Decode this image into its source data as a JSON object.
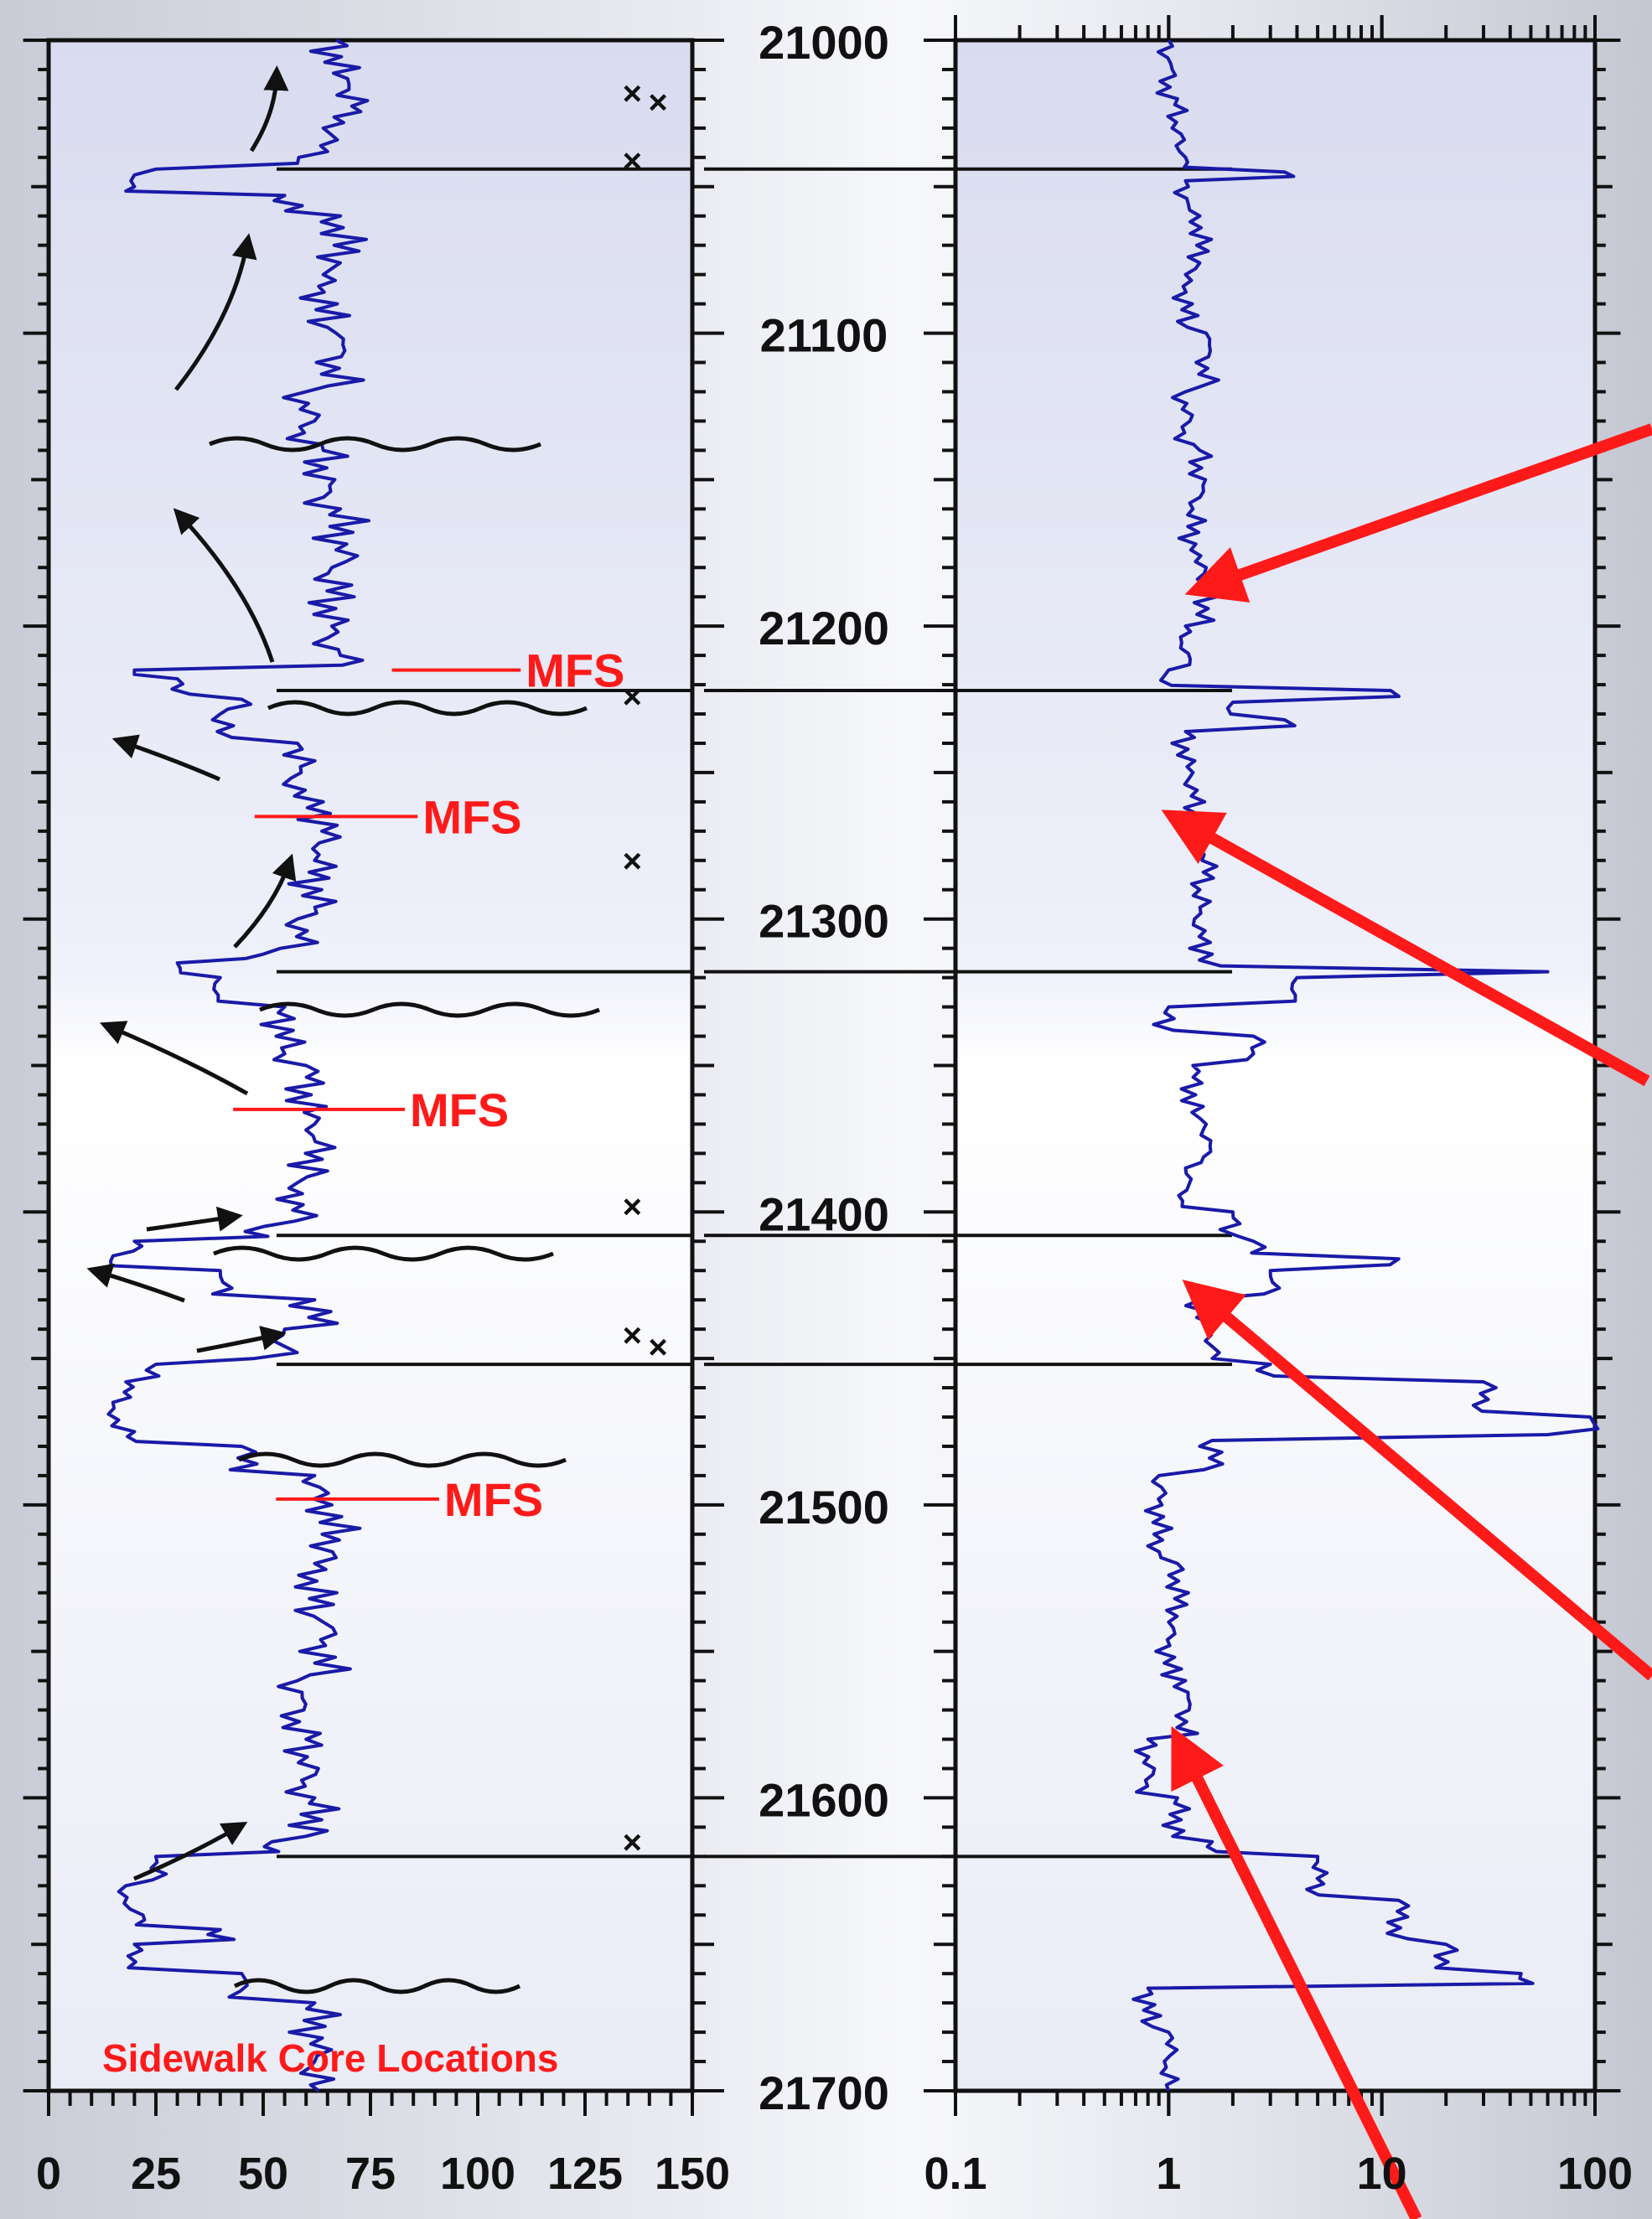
{
  "colors": {
    "log_line": "#1a1aa8",
    "mfs": "#ff1a1a",
    "arrow_red": "#ff1a1a",
    "boundary": "#111111",
    "panel_top": "#dcdff0",
    "panel_bottom": "#f3f5fb",
    "core_marker": "#1a1aa8"
  },
  "chart_data": [
    {
      "type": "line",
      "panel": "left",
      "xlabel": "",
      "ylabel": "",
      "xlim": [
        0,
        150
      ],
      "ylim": [
        21700,
        21000
      ],
      "x_ticks": [
        "0",
        "25",
        "50",
        "75",
        "100",
        "125",
        "150"
      ],
      "depth_ticks": [
        "21000",
        "21100",
        "21200",
        "21300",
        "21400",
        "21500",
        "21600",
        "21700"
      ],
      "series": [
        {
          "values": [
            [
              21000,
              67
            ],
            [
              21015,
              70
            ],
            [
              21030,
              64
            ],
            [
              21042,
              58
            ],
            [
              21044,
              25
            ],
            [
              21046,
              20
            ],
            [
              21050,
              20
            ],
            [
              21053,
              55
            ],
            [
              21060,
              68
            ],
            [
              21080,
              64
            ],
            [
              21100,
              67
            ],
            [
              21120,
              60
            ],
            [
              21140,
              64
            ],
            [
              21160,
              68
            ],
            [
              21180,
              66
            ],
            [
              21200,
              66
            ],
            [
              21210,
              68
            ],
            [
              21215,
              20
            ],
            [
              21218,
              30
            ],
            [
              21225,
              45
            ],
            [
              21230,
              40
            ],
            [
              21240,
              58
            ],
            [
              21260,
              64
            ],
            [
              21280,
              62
            ],
            [
              21300,
              58
            ],
            [
              21312,
              50
            ],
            [
              21315,
              30
            ],
            [
              21320,
              40
            ],
            [
              21330,
              55
            ],
            [
              21350,
              60
            ],
            [
              21370,
              62
            ],
            [
              21390,
              58
            ],
            [
              21405,
              50
            ],
            [
              21410,
              20
            ],
            [
              21415,
              15
            ],
            [
              21420,
              40
            ],
            [
              21430,
              62
            ],
            [
              21440,
              55
            ],
            [
              21450,
              48
            ],
            [
              21452,
              25
            ],
            [
              21458,
              18
            ],
            [
              21465,
              15
            ],
            [
              21475,
              20
            ],
            [
              21480,
              45
            ],
            [
              21490,
              62
            ],
            [
              21500,
              66
            ],
            [
              21520,
              62
            ],
            [
              21540,
              64
            ],
            [
              21560,
              58
            ],
            [
              21580,
              60
            ],
            [
              21600,
              62
            ],
            [
              21615,
              52
            ],
            [
              21620,
              25
            ],
            [
              21630,
              18
            ],
            [
              21640,
              22
            ],
            [
              21645,
              40
            ],
            [
              21650,
              20
            ],
            [
              21660,
              45
            ],
            [
              21670,
              62
            ],
            [
              21690,
              62
            ],
            [
              21700,
              63
            ]
          ]
        }
      ],
      "boundaries": [
        21044,
        21222,
        21318,
        21408,
        21452,
        21620
      ],
      "mfs": [
        {
          "depth": 21215,
          "x_from": 80,
          "x_to": 110,
          "label": "MFS"
        },
        {
          "depth": 21265,
          "x_from": 48,
          "x_to": 86,
          "label": "MFS"
        },
        {
          "depth": 21365,
          "x_from": 43,
          "x_to": 83,
          "label": "MFS"
        },
        {
          "depth": 21498,
          "x_from": 53,
          "x_to": 91,
          "label": "MFS"
        }
      ],
      "core_locations": [
        {
          "x": 136,
          "depth": 21018
        },
        {
          "x": 142,
          "depth": 21021
        },
        {
          "x": 136,
          "depth": 21041
        },
        {
          "x": 136,
          "depth": 21224
        },
        {
          "x": 136,
          "depth": 21280
        },
        {
          "x": 136,
          "depth": 21398
        },
        {
          "x": 136,
          "depth": 21442
        },
        {
          "x": 142,
          "depth": 21446
        },
        {
          "x": 136,
          "depth": 21615
        }
      ],
      "caption": "Sidewalk Core Locations"
    },
    {
      "type": "line",
      "panel": "right",
      "xscale": "log",
      "xlim": [
        0.1,
        100
      ],
      "ylim": [
        21700,
        21000
      ],
      "x_ticks": [
        "0.1",
        "1",
        "10",
        "100"
      ],
      "series": [
        {
          "values": [
            [
              21000,
              1.0
            ],
            [
              21020,
              1.1
            ],
            [
              21040,
              1.2
            ],
            [
              21045,
              3.5
            ],
            [
              21048,
              1.2
            ],
            [
              21060,
              1.4
            ],
            [
              21080,
              1.2
            ],
            [
              21100,
              1.5
            ],
            [
              21120,
              1.2
            ],
            [
              21140,
              1.4
            ],
            [
              21160,
              1.3
            ],
            [
              21180,
              1.5
            ],
            [
              21200,
              1.2
            ],
            [
              21215,
              1.0
            ],
            [
              21222,
              11
            ],
            [
              21226,
              2.0
            ],
            [
              21232,
              3.5
            ],
            [
              21236,
              1.2
            ],
            [
              21250,
              1.3
            ],
            [
              21270,
              1.5
            ],
            [
              21290,
              1.4
            ],
            [
              21312,
              1.6
            ],
            [
              21318,
              60
            ],
            [
              21320,
              4.0
            ],
            [
              21330,
              1.0
            ],
            [
              21340,
              2.5
            ],
            [
              21350,
              1.3
            ],
            [
              21370,
              1.5
            ],
            [
              21385,
              1.2
            ],
            [
              21400,
              2.0
            ],
            [
              21410,
              2.5
            ],
            [
              21416,
              12
            ],
            [
              21420,
              3.0
            ],
            [
              21430,
              1.4
            ],
            [
              21440,
              1.6
            ],
            [
              21452,
              3.0
            ],
            [
              21458,
              30
            ],
            [
              21470,
              95
            ],
            [
              21476,
              60
            ],
            [
              21478,
              1.6
            ],
            [
              21490,
              0.9
            ],
            [
              21520,
              1.1
            ],
            [
              21540,
              1.0
            ],
            [
              21560,
              1.2
            ],
            [
              21580,
              0.8
            ],
            [
              21600,
              1.1
            ],
            [
              21615,
              1.6
            ],
            [
              21620,
              5.0
            ],
            [
              21635,
              12
            ],
            [
              21650,
              20
            ],
            [
              21660,
              45
            ],
            [
              21665,
              0.8
            ],
            [
              21680,
              1.0
            ],
            [
              21700,
              1.0
            ]
          ]
        }
      ],
      "boundaries": [
        21044,
        21222,
        21318,
        21408,
        21452,
        21620
      ]
    }
  ]
}
